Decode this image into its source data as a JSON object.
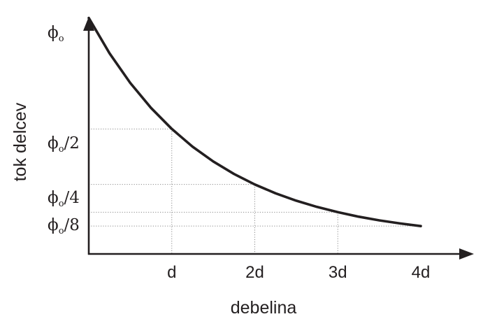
{
  "chart_data": {
    "type": "line",
    "title": "",
    "xlabel": "debelina",
    "ylabel": "tok delcev",
    "x_tick_labels": [
      "d",
      "2d",
      "3d",
      "4d"
    ],
    "y_tick_labels": [
      {
        "base": "ϕ",
        "sub": "o",
        "suffix": ""
      },
      {
        "base": "ϕ",
        "sub": "o",
        "suffix": "/2"
      },
      {
        "base": "ϕ",
        "sub": "o",
        "suffix": "/4"
      },
      {
        "base": "ϕ",
        "sub": "o",
        "suffix": "/8"
      }
    ],
    "xlim": [
      0,
      4
    ],
    "ylim": [
      0,
      1
    ],
    "grid": false,
    "guide_lines": true,
    "colors": {
      "curve": "#231f20",
      "axes": "#231f20",
      "guides": "#8a8a8a"
    },
    "series": [
      {
        "x": [
          0,
          0.25,
          0.5,
          0.75,
          1,
          1.25,
          1.5,
          1.75,
          2,
          2.25,
          2.5,
          2.75,
          3,
          3.25,
          3.5,
          3.75,
          4
        ],
        "y": [
          1,
          0.8409,
          0.7071,
          0.5946,
          0.5,
          0.4204,
          0.3536,
          0.2973,
          0.25,
          0.2102,
          0.1768,
          0.1487,
          0.125,
          0.1051,
          0.0884,
          0.0743,
          0.0625
        ]
      }
    ]
  }
}
